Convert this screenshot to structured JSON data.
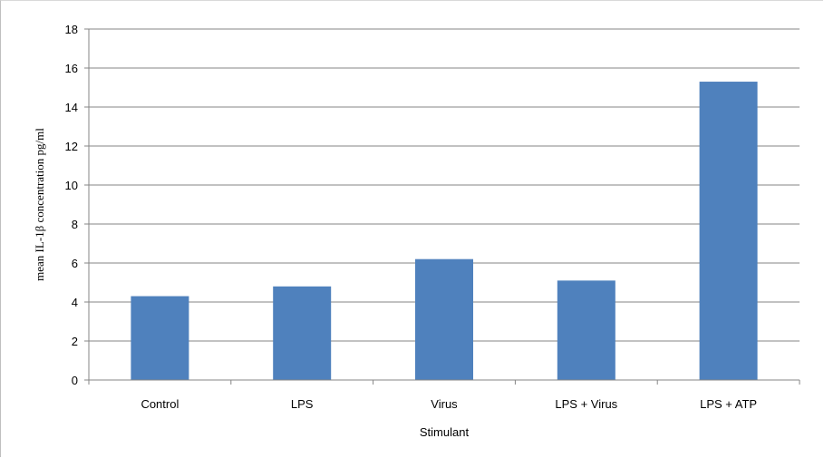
{
  "chart_data": {
    "type": "bar",
    "categories": [
      "Control",
      "LPS",
      "Virus",
      "LPS + Virus",
      "LPS + ATP"
    ],
    "values": [
      4.3,
      4.8,
      6.2,
      5.1,
      15.3
    ],
    "xlabel": "Stimulant",
    "ylabel": "mean IL-1β concentration pg/ml",
    "ylim": [
      0,
      18
    ],
    "yticks": [
      "0",
      "2",
      "4",
      "6",
      "8",
      "10",
      "12",
      "14",
      "16",
      "18"
    ],
    "grid": true,
    "legend": "none",
    "bar_color": "#4f81bd",
    "gridline_color": "#868686"
  }
}
